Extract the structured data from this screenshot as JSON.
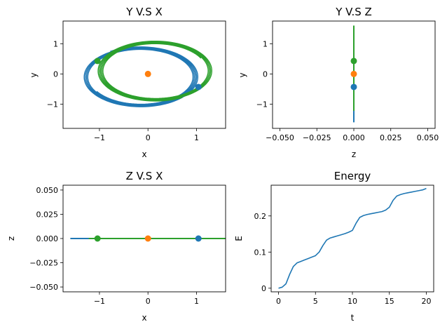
{
  "colors": {
    "body1": "#1f77b4",
    "body2": "#ff7f0e",
    "body3": "#2ca02c",
    "axes": "#000000"
  },
  "chart_data": [
    {
      "id": "yx",
      "type": "line",
      "title": "Y V.S X",
      "xlabel": "x",
      "ylabel": "y",
      "xlim": [
        -1.75,
        1.6
      ],
      "ylim": [
        -1.8,
        1.75
      ],
      "xticks": [
        -1,
        0,
        1
      ],
      "yticks": [
        -1,
        0,
        1
      ],
      "orbits": [
        {
          "color": "body1",
          "cx": -0.15,
          "cy": -0.1,
          "rx": 1.13,
          "ry": 0.95,
          "spread": 0.055,
          "loops": 5,
          "start": 212
        },
        {
          "color": "body3",
          "cx": 0.15,
          "cy": 0.1,
          "rx": 1.13,
          "ry": 0.95,
          "spread": 0.055,
          "loops": 5,
          "start": 28
        }
      ],
      "markers": [
        {
          "color": "body1",
          "x": 1.04,
          "y": -0.43
        },
        {
          "color": "body2",
          "x": 0.0,
          "y": 0.0
        },
        {
          "color": "body3",
          "x": -1.04,
          "y": 0.43
        }
      ]
    },
    {
      "id": "yz",
      "type": "line",
      "title": "Y V.S Z",
      "xlabel": "z",
      "ylabel": "y",
      "xlim": [
        -0.055,
        0.055
      ],
      "ylim": [
        -1.8,
        1.75
      ],
      "xticks": [
        -0.05,
        -0.025,
        0.0,
        0.025,
        0.05
      ],
      "xticklabels": [
        "−0.050",
        "−0.025",
        "0.000",
        "0.025",
        "0.050"
      ],
      "yticks": [
        -1,
        0,
        1
      ],
      "lines": [
        {
          "color": "body1",
          "x": [
            0,
            0
          ],
          "y": [
            -1.6,
            1.22
          ]
        },
        {
          "color": "body3",
          "x": [
            0,
            0
          ],
          "y": [
            -1.22,
            1.6
          ]
        }
      ],
      "markers": [
        {
          "color": "body1",
          "x": 0,
          "y": -0.43
        },
        {
          "color": "body2",
          "x": 0,
          "y": 0.0
        },
        {
          "color": "body3",
          "x": 0,
          "y": 0.43
        }
      ]
    },
    {
      "id": "zx",
      "type": "line",
      "title": "Z V.S X",
      "xlabel": "x",
      "ylabel": "z",
      "xlim": [
        -1.75,
        1.6
      ],
      "ylim": [
        -0.055,
        0.055
      ],
      "xticks": [
        -1,
        0,
        1
      ],
      "yticks": [
        -0.05,
        -0.025,
        0.0,
        0.025,
        0.05
      ],
      "yticklabels": [
        "−0.050",
        "−0.025",
        "0.000",
        "0.025",
        "0.050"
      ],
      "lines": [
        {
          "color": "body1",
          "x": [
            -1.6,
            1.22
          ],
          "y": [
            0,
            0
          ]
        },
        {
          "color": "body3",
          "x": [
            -1.22,
            1.6
          ],
          "y": [
            0,
            0
          ]
        }
      ],
      "markers": [
        {
          "color": "body1",
          "x": 1.04,
          "y": 0
        },
        {
          "color": "body2",
          "x": 0.0,
          "y": 0
        },
        {
          "color": "body3",
          "x": -1.04,
          "y": 0
        }
      ]
    },
    {
      "id": "energy",
      "type": "line",
      "title": "Energy",
      "xlabel": "t",
      "ylabel": "E",
      "xlim": [
        -1.0,
        21.0
      ],
      "ylim": [
        -0.01,
        0.285
      ],
      "xticks": [
        0,
        5,
        10,
        15,
        20
      ],
      "yticks": [
        0.0,
        0.1,
        0.2
      ],
      "series": [
        {
          "color": "body1",
          "x": [
            0,
            0.5,
            1.0,
            1.5,
            2.0,
            2.5,
            3.0,
            3.5,
            4.0,
            4.5,
            5.0,
            5.5,
            6.0,
            6.5,
            7.0,
            7.5,
            8.0,
            8.5,
            9.0,
            9.5,
            10.0,
            10.5,
            11.0,
            11.5,
            12.0,
            12.5,
            13.0,
            13.5,
            14.0,
            14.5,
            15.0,
            15.5,
            16.0,
            16.5,
            17.0,
            17.5,
            18.0,
            18.5,
            19.0,
            19.5,
            20.0
          ],
          "y": [
            0.0,
            0.003,
            0.012,
            0.038,
            0.06,
            0.07,
            0.074,
            0.078,
            0.082,
            0.086,
            0.09,
            0.1,
            0.118,
            0.133,
            0.139,
            0.142,
            0.145,
            0.148,
            0.151,
            0.155,
            0.16,
            0.18,
            0.196,
            0.201,
            0.204,
            0.206,
            0.208,
            0.21,
            0.212,
            0.216,
            0.224,
            0.243,
            0.255,
            0.259,
            0.262,
            0.264,
            0.266,
            0.268,
            0.27,
            0.272,
            0.276
          ]
        }
      ]
    }
  ]
}
